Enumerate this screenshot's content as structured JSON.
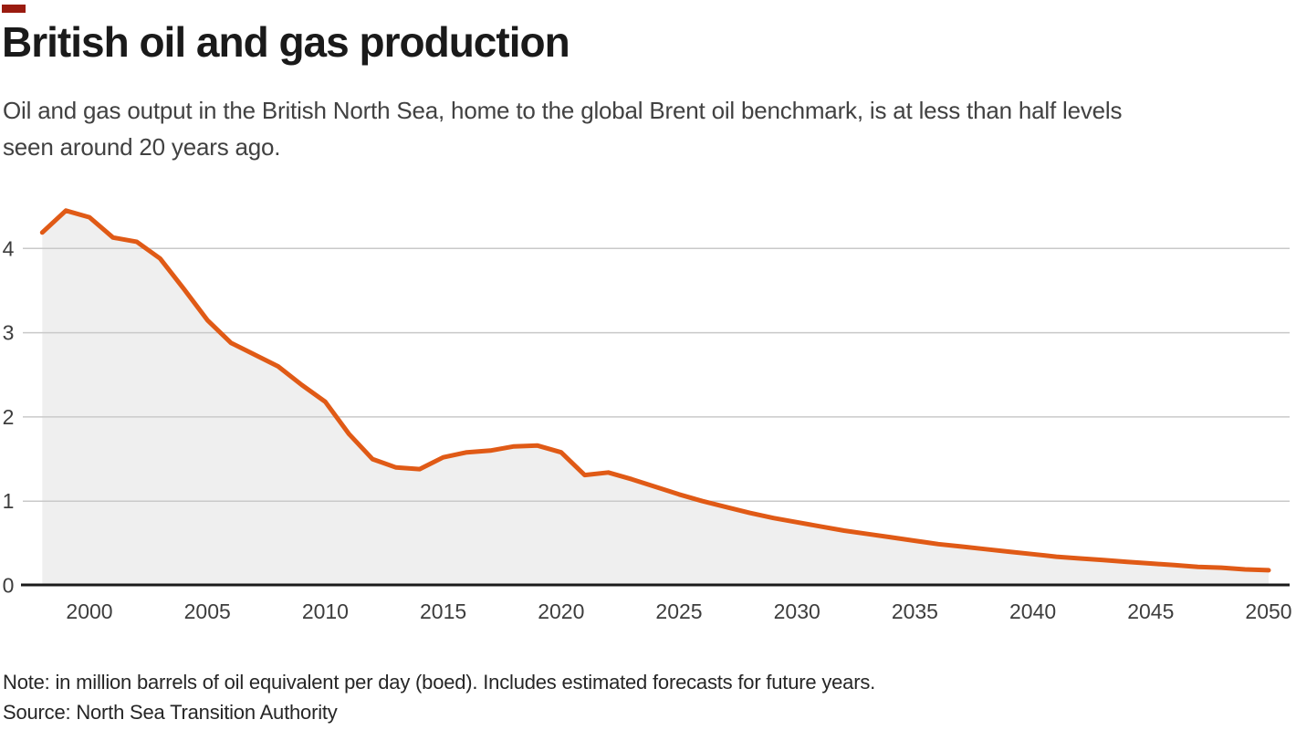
{
  "accent_bar": {
    "color": "#9a1b10"
  },
  "header": {
    "title": "British oil and gas production",
    "subtitle": "Oil and gas output in the British North Sea, home to the global Brent oil benchmark, is at less than half levels\nseen around 20 years ago."
  },
  "footer": {
    "note": "Note: in million barrels of oil equivalent per day (boed). Includes estimated forecasts for future years.",
    "source": "Source: North Sea Transition Authority"
  },
  "chart_data": {
    "type": "area",
    "title": "British oil and gas production",
    "ylabel": "",
    "xlabel": "",
    "unit": "million barrels of oil equivalent per day (boed)",
    "x": [
      1998,
      1999,
      2000,
      2001,
      2002,
      2003,
      2004,
      2005,
      2006,
      2007,
      2008,
      2009,
      2010,
      2011,
      2012,
      2013,
      2014,
      2015,
      2016,
      2017,
      2018,
      2019,
      2020,
      2021,
      2022,
      2023,
      2024,
      2025,
      2026,
      2027,
      2028,
      2029,
      2030,
      2031,
      2032,
      2033,
      2034,
      2035,
      2036,
      2037,
      2038,
      2039,
      2040,
      2041,
      2042,
      2043,
      2044,
      2045,
      2046,
      2047,
      2048,
      2049,
      2050
    ],
    "values": [
      4.19,
      4.45,
      4.37,
      4.13,
      4.08,
      3.88,
      3.52,
      3.15,
      2.88,
      2.74,
      2.6,
      2.38,
      2.18,
      1.8,
      1.5,
      1.4,
      1.38,
      1.52,
      1.58,
      1.6,
      1.65,
      1.66,
      1.58,
      1.31,
      1.34,
      1.26,
      1.17,
      1.08,
      1.0,
      0.93,
      0.86,
      0.8,
      0.75,
      0.7,
      0.65,
      0.61,
      0.57,
      0.53,
      0.49,
      0.46,
      0.43,
      0.4,
      0.37,
      0.34,
      0.32,
      0.3,
      0.28,
      0.26,
      0.24,
      0.22,
      0.21,
      0.19,
      0.18
    ],
    "x_ticks": [
      2000,
      2005,
      2010,
      2015,
      2020,
      2025,
      2030,
      2035,
      2040,
      2045,
      2050
    ],
    "y_ticks": [
      0,
      1,
      2,
      3,
      4
    ],
    "xlim": [
      1998,
      2050
    ],
    "ylim": [
      0,
      4.75
    ],
    "grid": "horizontal",
    "legend": false,
    "line_color": "#e05a16",
    "fill_color": "#efefef",
    "grid_color": "#c9c9c9",
    "axis_color": "#1a1a1a",
    "tick_label_color": "#3d3d3d"
  }
}
